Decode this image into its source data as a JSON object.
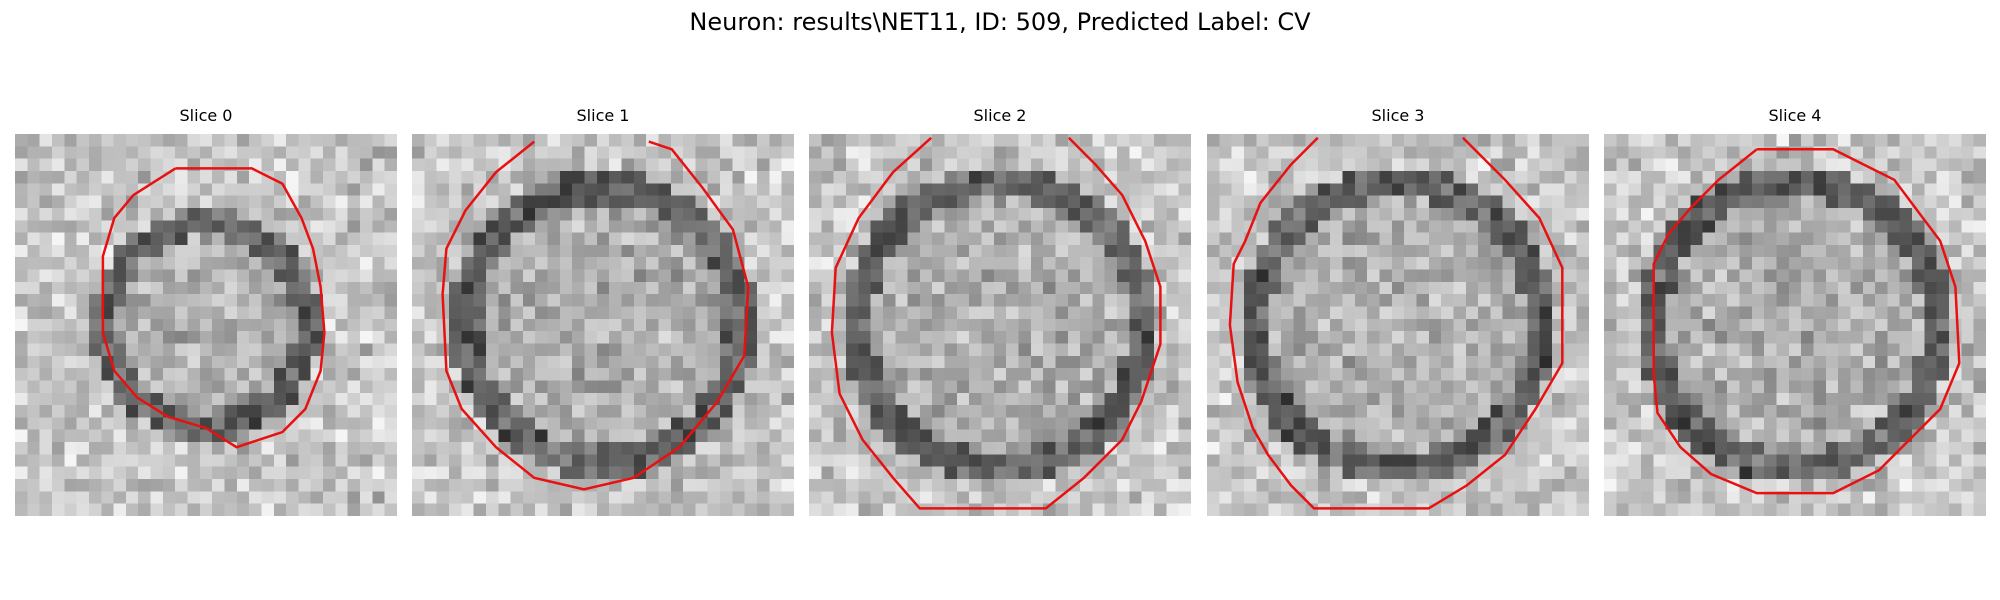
{
  "figure": {
    "title": "Neuron: results\\NET11, ID: 509, Predicted Label: CV"
  },
  "panels": [
    {
      "title": "Slice 0",
      "seed": 11,
      "ring_radius": 0.55,
      "inner_radius": 0.46,
      "contour": [
        [
          0.42,
          0.09
        ],
        [
          0.62,
          0.09
        ],
        [
          0.7,
          0.13
        ],
        [
          0.75,
          0.22
        ],
        [
          0.78,
          0.3
        ],
        [
          0.8,
          0.4
        ],
        [
          0.81,
          0.52
        ],
        [
          0.8,
          0.62
        ],
        [
          0.76,
          0.72
        ],
        [
          0.7,
          0.78
        ],
        [
          0.58,
          0.82
        ],
        [
          0.5,
          0.77
        ],
        [
          0.4,
          0.74
        ],
        [
          0.32,
          0.69
        ],
        [
          0.26,
          0.62
        ],
        [
          0.23,
          0.52
        ],
        [
          0.23,
          0.32
        ],
        [
          0.26,
          0.22
        ],
        [
          0.31,
          0.16
        ]
      ]
    },
    {
      "title": "Slice 1",
      "seed": 23,
      "ring_radius": 0.75,
      "inner_radius": 0.64,
      "contour": [
        [
          0.32,
          0.02
        ],
        [
          0.22,
          0.1
        ],
        [
          0.14,
          0.2
        ],
        [
          0.09,
          0.3
        ],
        [
          0.08,
          0.42
        ],
        [
          0.09,
          0.62
        ],
        [
          0.13,
          0.72
        ],
        [
          0.22,
          0.82
        ],
        [
          0.32,
          0.9
        ],
        [
          0.45,
          0.93
        ],
        [
          0.58,
          0.9
        ],
        [
          0.7,
          0.82
        ],
        [
          0.8,
          0.7
        ],
        [
          0.87,
          0.58
        ],
        [
          0.88,
          0.4
        ],
        [
          0.84,
          0.25
        ],
        [
          0.76,
          0.14
        ],
        [
          0.68,
          0.04
        ],
        [
          0.62,
          0.02
        ]
      ]
    },
    {
      "title": "Slice 2",
      "seed": 37,
      "ring_radius": 0.78,
      "inner_radius": 0.67,
      "contour": [
        [
          0.32,
          0.01
        ],
        [
          0.22,
          0.1
        ],
        [
          0.13,
          0.22
        ],
        [
          0.07,
          0.35
        ],
        [
          0.06,
          0.52
        ],
        [
          0.08,
          0.68
        ],
        [
          0.14,
          0.8
        ],
        [
          0.22,
          0.9
        ],
        [
          0.29,
          0.98
        ],
        [
          0.62,
          0.98
        ],
        [
          0.72,
          0.9
        ],
        [
          0.82,
          0.8
        ],
        [
          0.87,
          0.7
        ],
        [
          0.92,
          0.55
        ],
        [
          0.92,
          0.4
        ],
        [
          0.88,
          0.28
        ],
        [
          0.82,
          0.16
        ],
        [
          0.75,
          0.08
        ],
        [
          0.68,
          0.01
        ]
      ]
    },
    {
      "title": "Slice 3",
      "seed": 53,
      "ring_radius": 0.78,
      "inner_radius": 0.67,
      "contour": [
        [
          0.29,
          0.01
        ],
        [
          0.22,
          0.08
        ],
        [
          0.14,
          0.18
        ],
        [
          0.1,
          0.28
        ],
        [
          0.07,
          0.34
        ],
        [
          0.06,
          0.5
        ],
        [
          0.08,
          0.65
        ],
        [
          0.12,
          0.77
        ],
        [
          0.16,
          0.84
        ],
        [
          0.22,
          0.92
        ],
        [
          0.28,
          0.98
        ],
        [
          0.58,
          0.98
        ],
        [
          0.68,
          0.92
        ],
        [
          0.78,
          0.84
        ],
        [
          0.86,
          0.72
        ],
        [
          0.93,
          0.6
        ],
        [
          0.93,
          0.35
        ],
        [
          0.87,
          0.22
        ],
        [
          0.78,
          0.12
        ],
        [
          0.7,
          0.04
        ],
        [
          0.67,
          0.01
        ]
      ]
    },
    {
      "title": "Slice 4",
      "seed": 71,
      "ring_radius": 0.78,
      "inner_radius": 0.67,
      "contour": [
        [
          0.4,
          0.04
        ],
        [
          0.6,
          0.04
        ],
        [
          0.68,
          0.08
        ],
        [
          0.76,
          0.12
        ],
        [
          0.82,
          0.2
        ],
        [
          0.88,
          0.28
        ],
        [
          0.92,
          0.4
        ],
        [
          0.93,
          0.6
        ],
        [
          0.88,
          0.72
        ],
        [
          0.8,
          0.8
        ],
        [
          0.72,
          0.88
        ],
        [
          0.6,
          0.94
        ],
        [
          0.4,
          0.94
        ],
        [
          0.28,
          0.89
        ],
        [
          0.2,
          0.82
        ],
        [
          0.14,
          0.73
        ],
        [
          0.13,
          0.63
        ],
        [
          0.13,
          0.34
        ],
        [
          0.17,
          0.26
        ],
        [
          0.23,
          0.19
        ],
        [
          0.3,
          0.12
        ],
        [
          0.35,
          0.08
        ]
      ]
    }
  ]
}
